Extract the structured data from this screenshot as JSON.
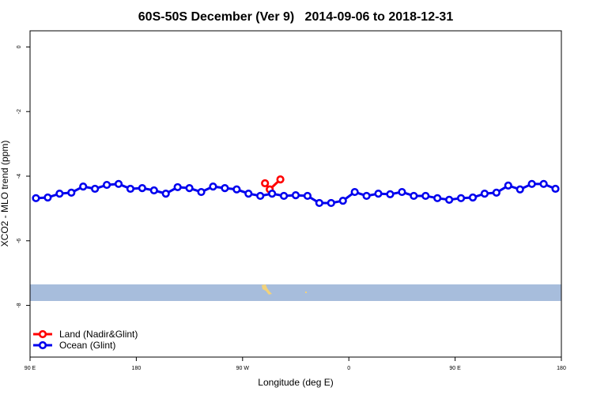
{
  "chart_data": {
    "type": "line",
    "title": "60S-50S December (Ver 9)   2014-09-06 to 2018-12-31",
    "x_label": "Longitude (deg E)",
    "y_label": "XCO2 - MLO trend (ppm)",
    "xlim": [
      90,
      540
    ],
    "ylim": [
      -9.6,
      0.5
    ],
    "xticks": [
      {
        "value": 90,
        "label": "90 E"
      },
      180,
      {
        "value": 270,
        "label": "90 W"
      },
      {
        "value": 360,
        "label": "0"
      },
      {
        "value": 450,
        "label": "90 E"
      },
      {
        "value": 540,
        "label": "180"
      }
    ],
    "yticks": [
      0,
      -2,
      -4,
      -6,
      -8
    ],
    "legend": "bottom-left",
    "series": [
      {
        "name": "Land (Nadir&Glint)",
        "color": "#ff0000",
        "x": [
          289,
          293,
          302
        ],
        "values": [
          -4.22,
          -4.41,
          -4.1
        ]
      },
      {
        "name": "Ocean (Glint)",
        "color": "#0000ee",
        "x": [
          95,
          105,
          115,
          125,
          135,
          145,
          155,
          165,
          175,
          185,
          195,
          205,
          215,
          225,
          235,
          245,
          255,
          265,
          275,
          285,
          295,
          305,
          315,
          325,
          335,
          345,
          355,
          365,
          375,
          385,
          395,
          405,
          415,
          425,
          435,
          445,
          455,
          465,
          475,
          485,
          495,
          505,
          515,
          525,
          535
        ],
        "values": [
          -4.68,
          -4.66,
          -4.54,
          -4.51,
          -4.32,
          -4.39,
          -4.27,
          -4.24,
          -4.39,
          -4.37,
          -4.44,
          -4.54,
          -4.34,
          -4.37,
          -4.49,
          -4.32,
          -4.37,
          -4.41,
          -4.54,
          -4.61,
          -4.54,
          -4.61,
          -4.59,
          -4.61,
          -4.83,
          -4.83,
          -4.76,
          -4.49,
          -4.61,
          -4.54,
          -4.56,
          -4.49,
          -4.61,
          -4.61,
          -4.68,
          -4.73,
          -4.68,
          -4.66,
          -4.54,
          -4.51,
          -4.29,
          -4.41,
          -4.24,
          -4.24,
          -4.39
        ]
      }
    ]
  }
}
